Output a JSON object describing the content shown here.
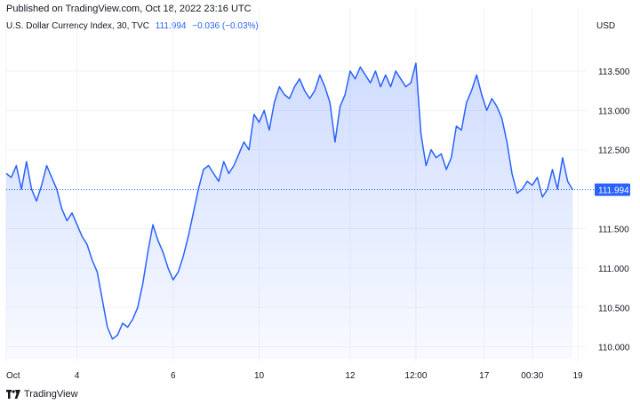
{
  "header": {
    "published": "Published on TradingView.com, Oct 18, 2022 23:16 UTC",
    "symbol": "U.S. Dollar Currency Index, 30, TVC",
    "last": "111.994",
    "change": "−0.036 (−0.03%)",
    "currency": "USD"
  },
  "brand": {
    "logo_icon": "tradingview-logo-icon",
    "name": "TradingView"
  },
  "colors": {
    "line": "#2962ff",
    "grid": "#f0f3fa",
    "text": "#131722",
    "badge": "#2962ff"
  },
  "chart_data": {
    "type": "area",
    "ylim": [
      109.85,
      113.95
    ],
    "yticks": [
      110.0,
      110.5,
      111.0,
      111.5,
      112.0,
      112.5,
      113.0,
      113.5
    ],
    "ytick_labels": [
      "110.000",
      "110.500",
      "111.000",
      "111.500",
      "112.000",
      "112.500",
      "113.000",
      "113.500"
    ],
    "xticks": [
      "Oct",
      "4",
      "6",
      "10",
      "12",
      "12:00",
      "17",
      "00:30",
      "19"
    ],
    "xtick_pos": [
      0,
      14,
      33,
      50,
      68,
      81,
      94.5,
      104,
      113
    ],
    "last_value": 111.994,
    "x_count": 113,
    "values": [
      112.2,
      112.15,
      112.3,
      112.0,
      112.35,
      112.0,
      111.85,
      112.05,
      112.3,
      112.15,
      112.0,
      111.75,
      111.6,
      111.7,
      111.55,
      111.4,
      111.3,
      111.1,
      110.95,
      110.6,
      110.25,
      110.1,
      110.15,
      110.3,
      110.25,
      110.35,
      110.5,
      110.8,
      111.2,
      111.55,
      111.35,
      111.2,
      111.0,
      110.85,
      110.95,
      111.15,
      111.4,
      111.7,
      112.0,
      112.25,
      112.3,
      112.2,
      112.1,
      112.35,
      112.2,
      112.3,
      112.45,
      112.6,
      112.5,
      112.95,
      112.85,
      113.0,
      112.75,
      113.1,
      113.3,
      113.2,
      113.15,
      113.3,
      113.4,
      113.25,
      113.15,
      113.25,
      113.45,
      113.3,
      113.1,
      112.6,
      113.05,
      113.2,
      113.5,
      113.4,
      113.55,
      113.45,
      113.35,
      113.5,
      113.3,
      113.45,
      113.3,
      113.5,
      113.4,
      113.3,
      113.35,
      113.6,
      112.7,
      112.3,
      112.5,
      112.4,
      112.45,
      112.25,
      112.4,
      112.8,
      112.75,
      113.1,
      113.25,
      113.45,
      113.2,
      113.0,
      113.15,
      113.05,
      112.9,
      112.6,
      112.2,
      111.95,
      112.0,
      112.1,
      112.05,
      112.15,
      111.9,
      112.0,
      112.25,
      112.0,
      112.4,
      112.1,
      111.994
    ]
  }
}
